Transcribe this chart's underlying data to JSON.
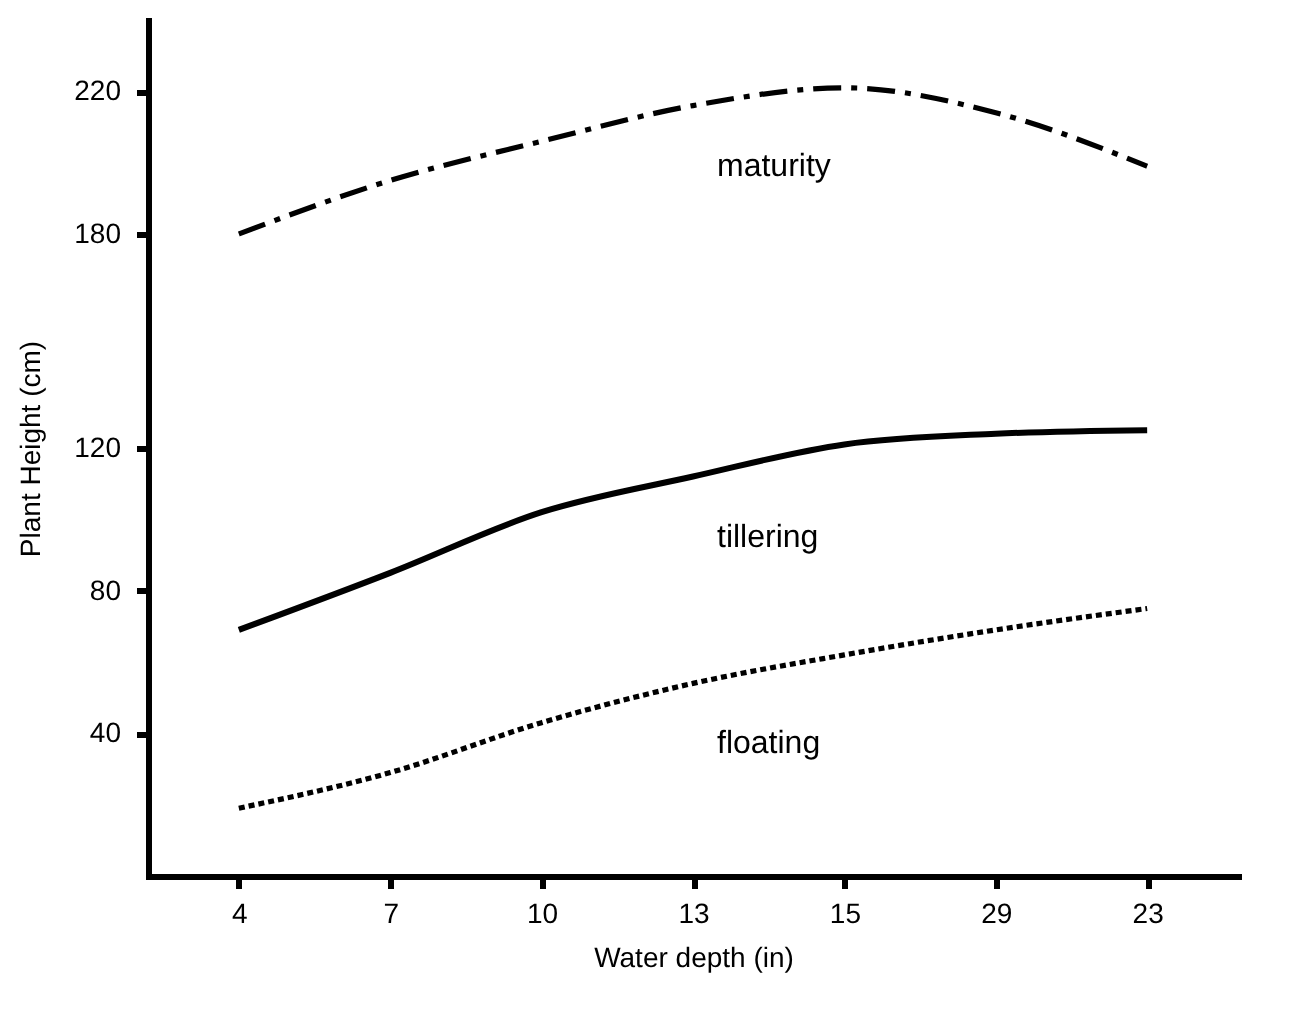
{
  "chart_data": {
    "type": "line",
    "xlabel": "Water depth (in)",
    "ylabel": "Plant Height (cm)",
    "categories": [
      "4",
      "7",
      "10",
      "13",
      "15",
      "29",
      "23"
    ],
    "series": [
      {
        "name": "maturity",
        "color": "#000000",
        "line_style": "dashed",
        "values": [
          180,
          195,
          206,
          216,
          221,
          214,
          199
        ]
      },
      {
        "name": "tillering",
        "color": "#000000",
        "line_style": "solid",
        "values": [
          69,
          85,
          102,
          112,
          121,
          124,
          125
        ]
      },
      {
        "name": "floating",
        "color": "#000000",
        "line_style": "dotted",
        "values": [
          19,
          29,
          43,
          54,
          62,
          69,
          75
        ]
      }
    ],
    "ylim": [
      0,
      240
    ],
    "yticks": [
      40,
      80,
      120,
      180,
      220
    ],
    "grid": false,
    "legend": false,
    "marker": "none"
  }
}
